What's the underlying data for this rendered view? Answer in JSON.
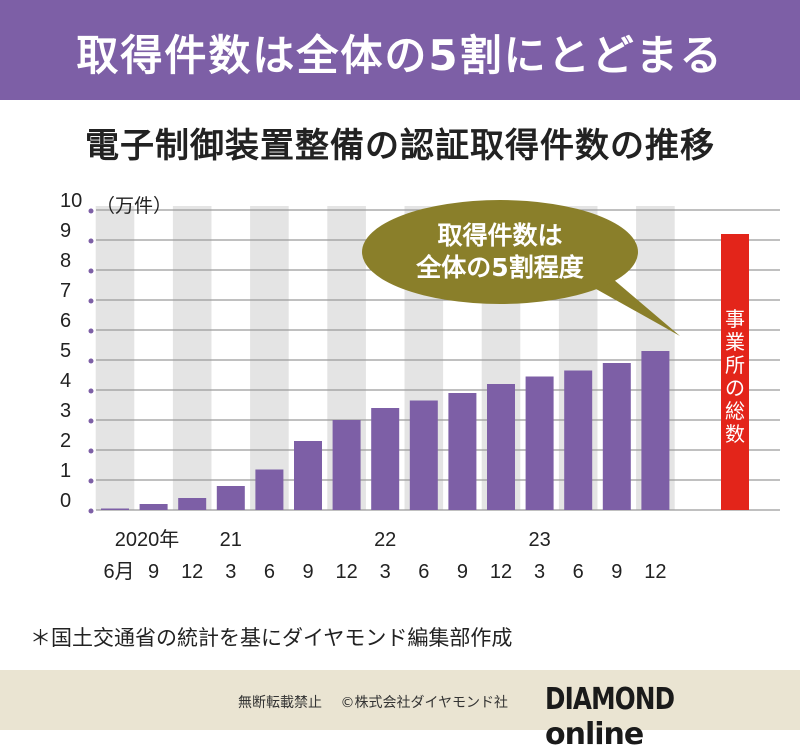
{
  "banner": {
    "headline": "取得件数は全体の5割にとどまる"
  },
  "subtitle": "電子制御装置整備の認証取得件数の推移",
  "chart_data": {
    "type": "bar",
    "unit_label": "（万件）",
    "ylim": [
      0,
      10
    ],
    "y_ticks": [
      "0",
      "1",
      "2",
      "3",
      "4",
      "5",
      "6",
      "7",
      "8",
      "9",
      "10"
    ],
    "categories": [
      "2020-6",
      "2020-9",
      "2020-12",
      "2021-3",
      "2021-6",
      "2021-9",
      "2021-12",
      "2022-3",
      "2022-6",
      "2022-9",
      "2022-12",
      "2023-3",
      "2023-6",
      "2023-9",
      "2023-12"
    ],
    "x_labels": [
      "6月",
      "9",
      "12",
      "3",
      "6",
      "9",
      "12",
      "3",
      "6",
      "9",
      "12",
      "3",
      "6",
      "9",
      "12"
    ],
    "year_labels": [
      {
        "index": 0,
        "text": "2020年"
      },
      {
        "index": 3,
        "text": "21"
      },
      {
        "index": 7,
        "text": "22"
      },
      {
        "index": 11,
        "text": "23"
      }
    ],
    "values": [
      0.05,
      0.2,
      0.4,
      0.8,
      1.35,
      2.3,
      3.0,
      3.4,
      3.65,
      3.9,
      4.2,
      4.45,
      4.65,
      4.9,
      5.3
    ],
    "bar_color": "#7d5fa6",
    "total_bar": {
      "label": "事業所の総数",
      "value": 9.2,
      "color": "#e3251a"
    },
    "callout": {
      "lines": [
        "取得件数は",
        "全体の5割程度"
      ],
      "color": "#8a7f2a"
    },
    "grid": true
  },
  "note": "＊国土交通省の統計を基にダイヤモンド編集部作成",
  "footer": {
    "copyright": "無断転載禁止　 ©株式会社ダイヤモンド社",
    "brand": "DIAMOND",
    "brand_suffix": "online"
  }
}
